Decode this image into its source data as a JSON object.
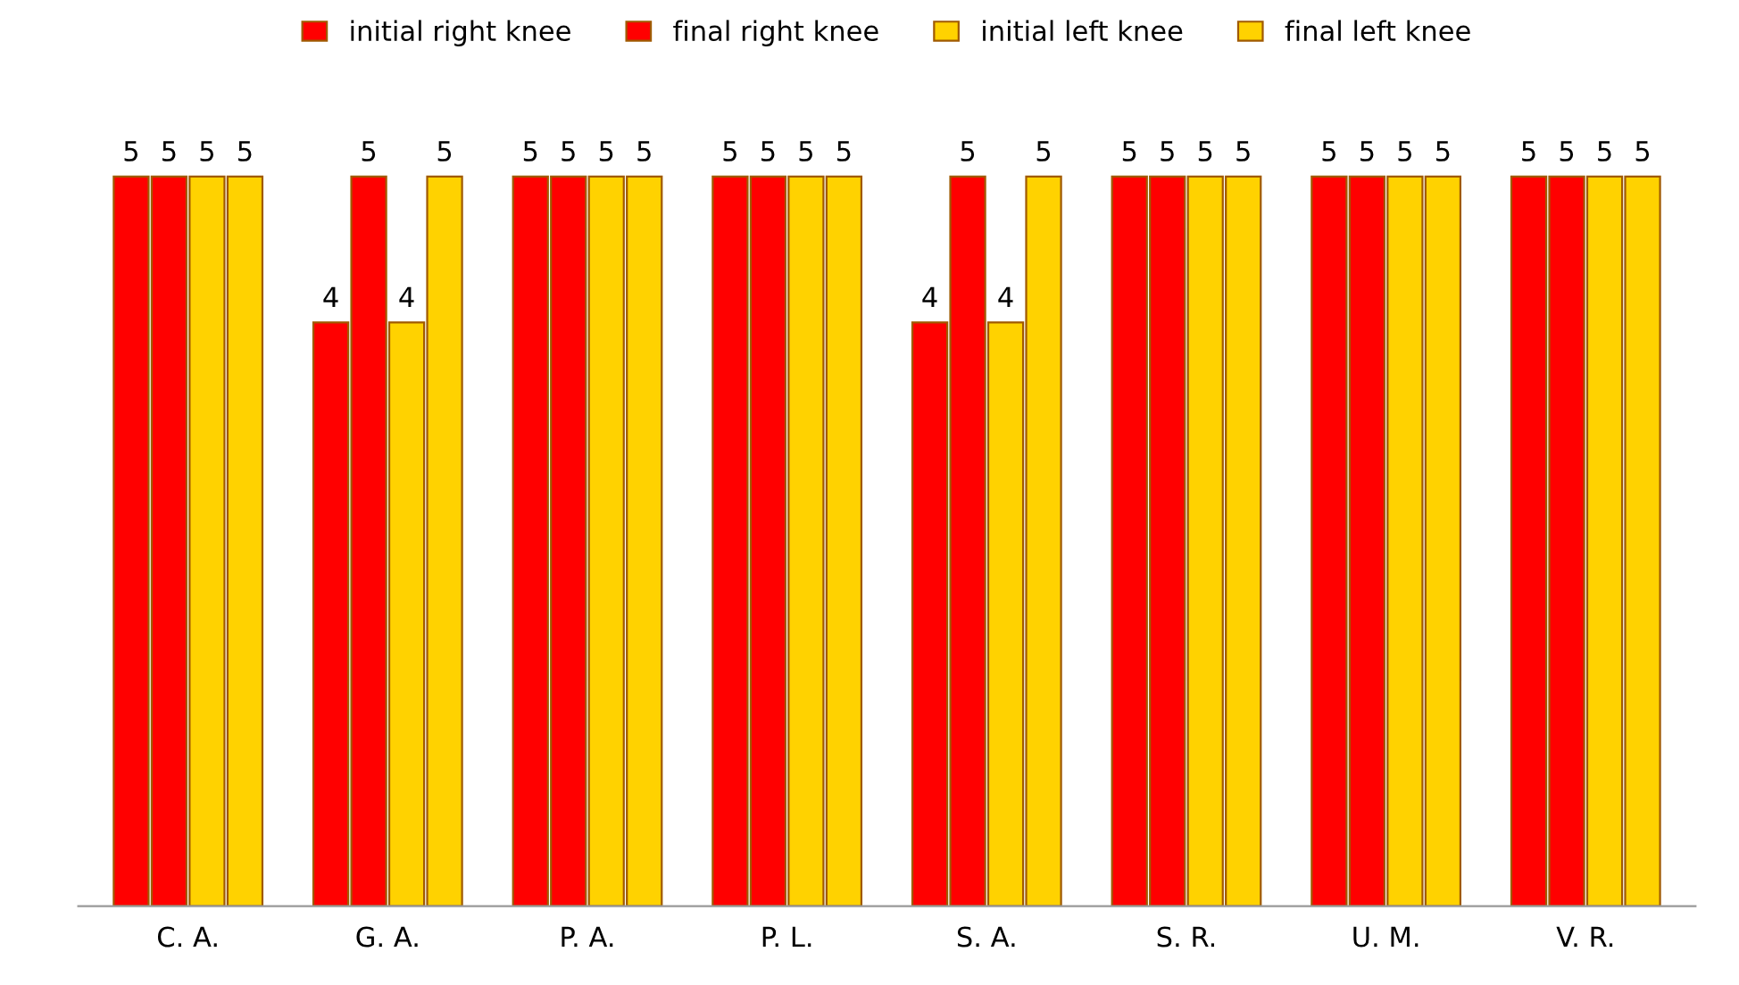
{
  "chart_data": {
    "type": "bar",
    "categories": [
      "C. A.",
      "G. A.",
      "P. A.",
      "P. L.",
      "S. A.",
      "S. R.",
      "U. M.",
      "V. R."
    ],
    "series": [
      {
        "name": "initial right knee",
        "color": "#ff0000",
        "values": [
          5,
          4,
          5,
          5,
          4,
          5,
          5,
          5
        ]
      },
      {
        "name": "final right knee",
        "color": "#ff0000",
        "values": [
          5,
          5,
          5,
          5,
          5,
          5,
          5,
          5
        ]
      },
      {
        "name": "initial left knee",
        "color": "#ffd200",
        "values": [
          5,
          4,
          5,
          5,
          4,
          5,
          5,
          5
        ]
      },
      {
        "name": "final left knee",
        "color": "#ffd200",
        "values": [
          5,
          5,
          5,
          5,
          5,
          5,
          5,
          5
        ]
      }
    ],
    "data_labels": true,
    "legend": "top"
  }
}
